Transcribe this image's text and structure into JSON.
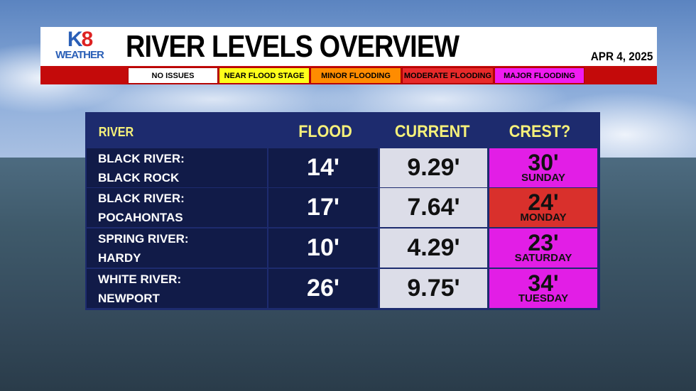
{
  "brand": {
    "logo_text": "K8",
    "logo_sub": "WEATHER"
  },
  "title": "RIVER LEVELS OVERVIEW",
  "date": "APR 4, 2025",
  "legend": [
    {
      "label": "NO ISSUES",
      "color": "#ffffff"
    },
    {
      "label": "NEAR FLOOD STAGE",
      "color": "#ffff1a"
    },
    {
      "label": "MINOR FLOODING",
      "color": "#ff8c00"
    },
    {
      "label": "MODERATE FLOODING",
      "color": "#e82a2a"
    },
    {
      "label": "MAJOR FLOODING",
      "color": "#f01cf0"
    }
  ],
  "table": {
    "headers": {
      "river": "RIVER",
      "flood": "FLOOD",
      "current": "CURRENT",
      "crest": "CREST?"
    },
    "rows": [
      {
        "river_line1": "BLACK RIVER:",
        "river_line2": "BLACK ROCK",
        "flood": "14'",
        "current": "9.29'",
        "crest": "30'",
        "crest_day": "SUNDAY",
        "crest_color": "#e21ee6"
      },
      {
        "river_line1": "BLACK RIVER:",
        "river_line2": "POCAHONTAS",
        "flood": "17'",
        "current": "7.64'",
        "crest": "24'",
        "crest_day": "MONDAY",
        "crest_color": "#d9302c"
      },
      {
        "river_line1": "SPRING RIVER:",
        "river_line2": "HARDY",
        "flood": "10'",
        "current": "4.29'",
        "crest": "23'",
        "crest_day": "SATURDAY",
        "crest_color": "#e21ee6"
      },
      {
        "river_line1": "WHITE RIVER:",
        "river_line2": "NEWPORT",
        "flood": "26'",
        "current": "9.75'",
        "crest": "34'",
        "crest_day": "TUESDAY",
        "crest_color": "#e21ee6"
      }
    ]
  }
}
